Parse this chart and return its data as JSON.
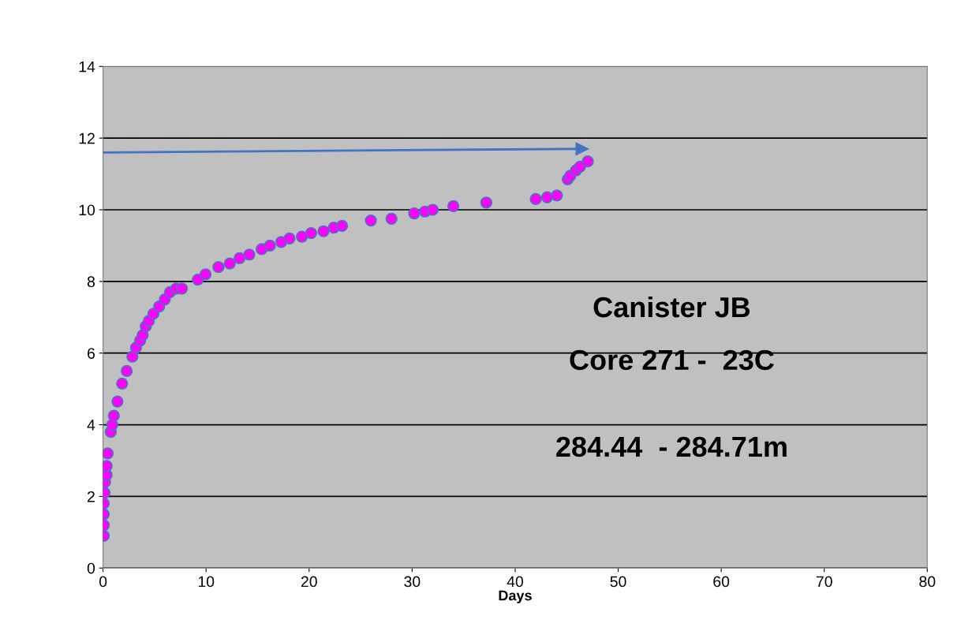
{
  "chart_data": {
    "type": "scatter",
    "xlabel": "Days",
    "xlim": [
      0,
      80
    ],
    "xticks": [
      0,
      10,
      20,
      30,
      40,
      50,
      60,
      70,
      80
    ],
    "ylim": [
      0,
      14
    ],
    "yticks": [
      0,
      2,
      4,
      6,
      8,
      10,
      12,
      14
    ],
    "grid": "y",
    "legend": false,
    "annotations": [
      "Canister JB",
      "Core 271 -  23C",
      "284.44  - 284.71m"
    ],
    "series": [
      {
        "marker": "circle",
        "color": "#ff00ff",
        "x": [
          0.07,
          0.07,
          0.07,
          0.07,
          0.15,
          0.2,
          0.35,
          0.35,
          0.45,
          0.75,
          0.9,
          1.05,
          1.4,
          1.85,
          2.3,
          2.85,
          3.2,
          3.6,
          3.85,
          4.15,
          4.45,
          4.9,
          5.45,
          6.0,
          6.5,
          7.1,
          7.65,
          9.2,
          9.95,
          11.2,
          12.3,
          13.25,
          14.2,
          15.4,
          16.2,
          17.3,
          18.1,
          19.3,
          20.2,
          21.4,
          22.4,
          23.2,
          26.0,
          28.0,
          30.2,
          31.25,
          32.0,
          34.0,
          37.2,
          42.0,
          43.1,
          44.05,
          45.1,
          45.35,
          45.9,
          46.3,
          47.05
        ],
        "values": [
          0.9,
          1.2,
          1.5,
          1.8,
          2.1,
          2.4,
          2.6,
          2.85,
          3.2,
          3.8,
          4.0,
          4.25,
          4.65,
          5.15,
          5.5,
          5.9,
          6.15,
          6.35,
          6.5,
          6.75,
          6.9,
          7.1,
          7.3,
          7.5,
          7.7,
          7.8,
          7.8,
          8.05,
          8.2,
          8.4,
          8.5,
          8.65,
          8.75,
          8.9,
          9.0,
          9.1,
          9.2,
          9.25,
          9.35,
          9.4,
          9.5,
          9.55,
          9.7,
          9.75,
          9.9,
          9.95,
          10.0,
          10.1,
          10.2,
          10.3,
          10.35,
          10.4,
          10.85,
          10.95,
          11.1,
          11.2,
          11.35
        ]
      },
      {
        "type": "line",
        "marker": "triangle",
        "color": "#4472c4",
        "x": [
          0,
          46.5
        ],
        "values": [
          11.6,
          11.7
        ]
      }
    ]
  }
}
